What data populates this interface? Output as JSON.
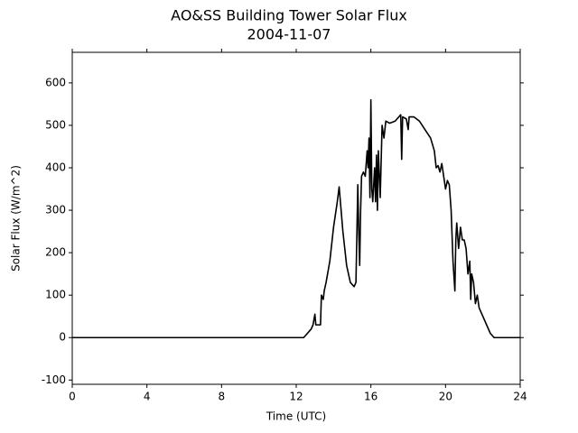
{
  "chart_data": {
    "type": "line",
    "title": "AO&SS Building Tower Solar Flux",
    "subtitle": "2004-11-07",
    "x_label": "Time (UTC)",
    "y_label": "Solar Flux (W/m^2)",
    "xlim": [
      0,
      24
    ],
    "xticks": [
      0,
      4,
      8,
      12,
      16,
      20,
      24
    ],
    "ylim": [
      -110,
      672
    ],
    "yticks": [
      -100,
      0,
      100,
      200,
      300,
      400,
      500,
      600
    ],
    "series": [
      {
        "name": "Solar Flux",
        "color": "#000000",
        "x": [
          0,
          12.4,
          12.5,
          12.8,
          12.9,
          13.0,
          13.05,
          13.3,
          13.35,
          13.45,
          13.5,
          13.6,
          13.8,
          14.0,
          14.2,
          14.3,
          14.5,
          14.7,
          14.9,
          15.1,
          15.2,
          15.3,
          15.35,
          15.4,
          15.45,
          15.5,
          15.6,
          15.7,
          15.8,
          15.85,
          15.9,
          15.95,
          16.0,
          16.05,
          16.1,
          16.2,
          16.25,
          16.3,
          16.35,
          16.4,
          16.5,
          16.6,
          16.7,
          16.8,
          17.0,
          17.3,
          17.5,
          17.6,
          17.65,
          17.7,
          17.9,
          18.0,
          18.05,
          18.3,
          18.6,
          18.9,
          19.2,
          19.4,
          19.5,
          19.6,
          19.7,
          19.8,
          19.9,
          20.0,
          20.1,
          20.2,
          20.3,
          20.4,
          20.5,
          20.55,
          20.6,
          20.7,
          20.8,
          20.9,
          21.0,
          21.1,
          21.2,
          21.3,
          21.35,
          21.4,
          21.5,
          21.6,
          21.7,
          21.8,
          22.0,
          22.2,
          22.4,
          22.6,
          24
        ],
        "values": [
          0,
          0,
          5,
          20,
          30,
          55,
          30,
          30,
          100,
          90,
          110,
          130,
          180,
          260,
          320,
          355,
          250,
          170,
          130,
          120,
          130,
          360,
          250,
          170,
          300,
          380,
          390,
          380,
          440,
          400,
          470,
          330,
          560,
          350,
          320,
          400,
          320,
          430,
          300,
          440,
          330,
          500,
          470,
          510,
          505,
          510,
          520,
          525,
          420,
          520,
          515,
          490,
          520,
          520,
          510,
          490,
          470,
          440,
          400,
          405,
          390,
          410,
          380,
          350,
          370,
          360,
          300,
          180,
          110,
          230,
          270,
          210,
          260,
          230,
          230,
          210,
          150,
          180,
          90,
          150,
          130,
          80,
          100,
          70,
          50,
          30,
          10,
          0,
          0
        ]
      }
    ]
  }
}
